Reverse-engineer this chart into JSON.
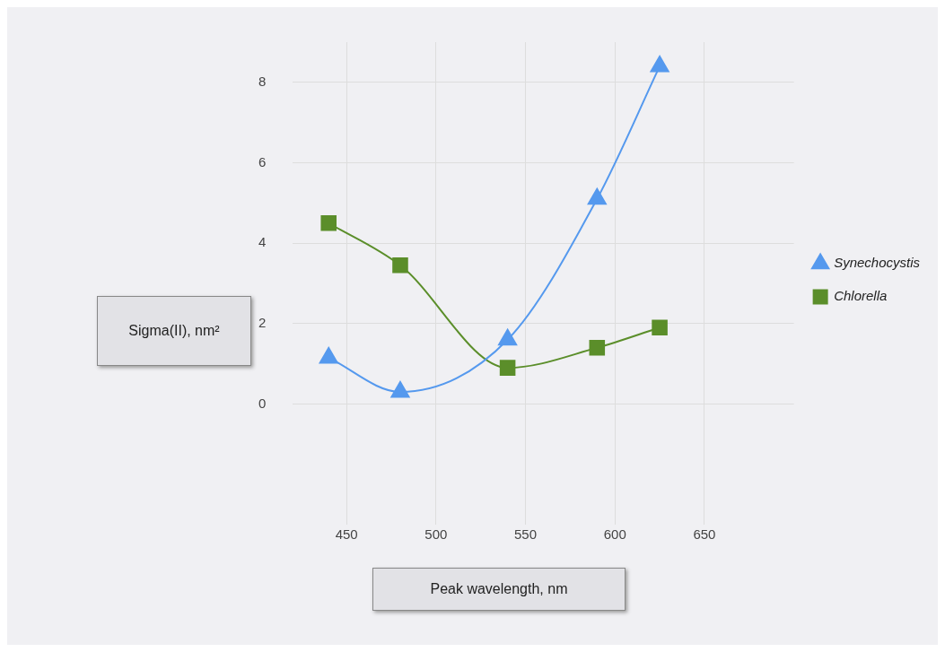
{
  "chart_data": {
    "type": "line",
    "xlabel": "Peak wavelength, nm",
    "ylabel": "Sigma(II), nm²",
    "xlim": [
      420,
      700
    ],
    "xticks": [
      450,
      500,
      550,
      600,
      650
    ],
    "ylim": [
      -3,
      9
    ],
    "yticks": [
      0,
      2,
      4,
      6,
      8
    ],
    "grid": true,
    "legend": "right",
    "x": [
      440,
      480,
      540,
      590,
      625
    ],
    "series": [
      {
        "name": "Synechocystis",
        "color": "#5599ee",
        "marker": "triangle",
        "values": [
          1.15,
          0.3,
          1.6,
          5.1,
          8.4
        ]
      },
      {
        "name": "Chlorella",
        "color": "#5b8e2a",
        "marker": "square",
        "values": [
          4.5,
          3.45,
          0.9,
          1.4,
          1.9
        ]
      }
    ]
  }
}
